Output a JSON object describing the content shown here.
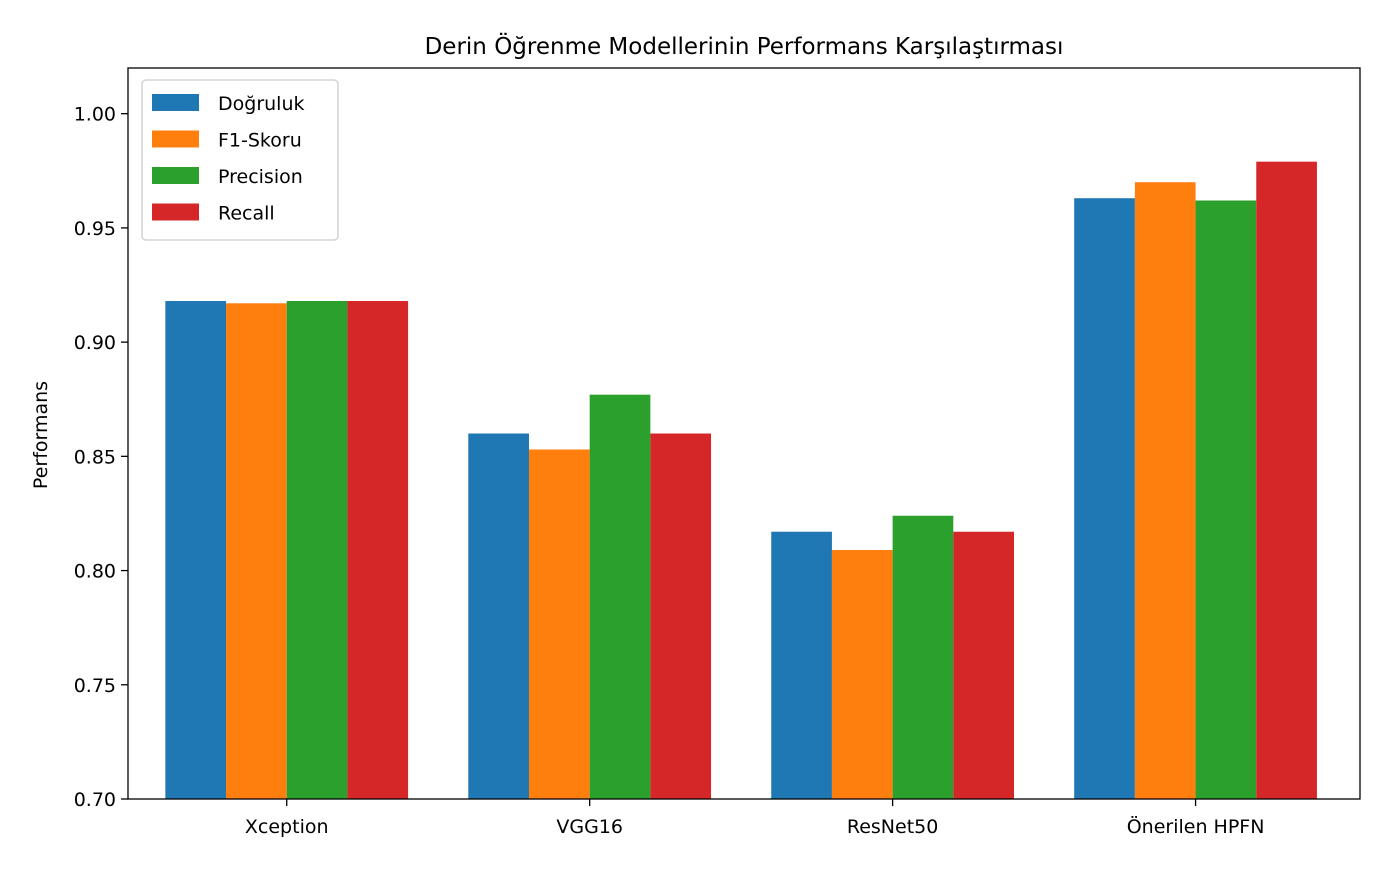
{
  "chart_data": {
    "type": "bar",
    "title": "Derin Öğrenme Modellerinin Performans Karşılaştırması",
    "xlabel": "",
    "ylabel": "Performans",
    "categories": [
      "Xception",
      "VGG16",
      "ResNet50",
      "Önerilen HPFN"
    ],
    "series": [
      {
        "name": "Doğruluk",
        "color": "#1f77b4",
        "values": [
          0.918,
          0.86,
          0.817,
          0.963
        ]
      },
      {
        "name": "F1-Skoru",
        "color": "#ff7f0e",
        "values": [
          0.917,
          0.853,
          0.809,
          0.97
        ]
      },
      {
        "name": "Precision",
        "color": "#2ca02c",
        "values": [
          0.918,
          0.877,
          0.824,
          0.962
        ]
      },
      {
        "name": "Recall",
        "color": "#d62728",
        "values": [
          0.918,
          0.86,
          0.817,
          0.979
        ]
      }
    ],
    "ylim": [
      0.7,
      1.02
    ],
    "yticks": [
      0.7,
      0.75,
      0.8,
      0.85,
      0.9,
      0.95,
      1.0
    ],
    "ytick_labels": [
      "0.70",
      "0.75",
      "0.80",
      "0.85",
      "0.90",
      "0.95",
      "1.00"
    ],
    "grid": false,
    "legend_position": "top-left"
  }
}
